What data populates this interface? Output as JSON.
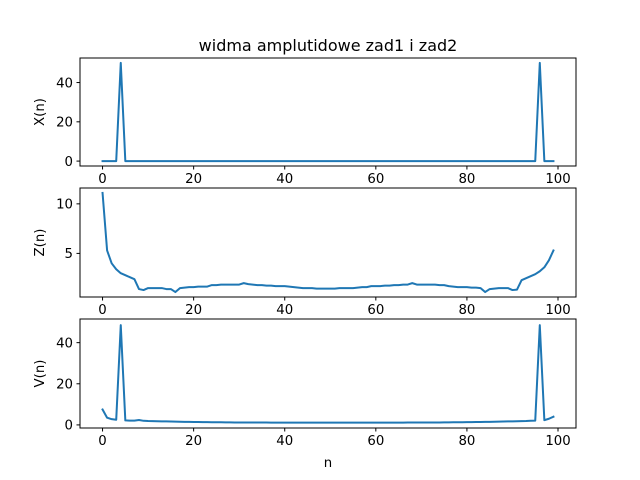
{
  "title": "widma amplutidowe zad1 i zad2",
  "line_color": "#1f77b4",
  "chart_data": [
    {
      "type": "line",
      "ylabel": "X(n)",
      "xlim": [
        -4.95,
        103.95
      ],
      "ylim": [
        -2.5,
        52.5
      ],
      "xticks": [
        0,
        20,
        40,
        60,
        80,
        100
      ],
      "yticks": [
        0,
        20,
        40
      ],
      "grid": false,
      "x": [
        0,
        1,
        2,
        3,
        4,
        5,
        6,
        7,
        8,
        9,
        10,
        11,
        12,
        13,
        14,
        15,
        16,
        17,
        18,
        19,
        20,
        21,
        22,
        23,
        24,
        25,
        26,
        27,
        28,
        29,
        30,
        31,
        32,
        33,
        34,
        35,
        36,
        37,
        38,
        39,
        40,
        41,
        42,
        43,
        44,
        45,
        46,
        47,
        48,
        49,
        50,
        51,
        52,
        53,
        54,
        55,
        56,
        57,
        58,
        59,
        60,
        61,
        62,
        63,
        64,
        65,
        66,
        67,
        68,
        69,
        70,
        71,
        72,
        73,
        74,
        75,
        76,
        77,
        78,
        79,
        80,
        81,
        82,
        83,
        84,
        85,
        86,
        87,
        88,
        89,
        90,
        91,
        92,
        93,
        94,
        95,
        96,
        97,
        98,
        99
      ],
      "values": [
        0,
        0,
        0,
        0,
        50,
        0,
        0,
        0,
        0,
        0,
        0,
        0,
        0,
        0,
        0,
        0,
        0,
        0,
        0,
        0,
        0,
        0,
        0,
        0,
        0,
        0,
        0,
        0,
        0,
        0,
        0,
        0,
        0,
        0,
        0,
        0,
        0,
        0,
        0,
        0,
        0,
        0,
        0,
        0,
        0,
        0,
        0,
        0,
        0,
        0,
        0,
        0,
        0,
        0,
        0,
        0,
        0,
        0,
        0,
        0,
        0,
        0,
        0,
        0,
        0,
        0,
        0,
        0,
        0,
        0,
        0,
        0,
        0,
        0,
        0,
        0,
        0,
        0,
        0,
        0,
        0,
        0,
        0,
        0,
        0,
        0,
        0,
        0,
        0,
        0,
        0,
        0,
        0,
        0,
        0,
        0,
        50,
        0,
        0,
        0
      ]
    },
    {
      "type": "line",
      "ylabel": "Z(n)",
      "xlim": [
        -4.95,
        103.95
      ],
      "ylim": [
        0.6,
        11.6
      ],
      "xticks": [
        0,
        20,
        40,
        60,
        80,
        100
      ],
      "yticks": [
        5,
        10
      ],
      "grid": false,
      "x": [
        0,
        1,
        2,
        3,
        4,
        5,
        6,
        7,
        8,
        9,
        10,
        11,
        12,
        13,
        14,
        15,
        16,
        17,
        18,
        19,
        20,
        21,
        22,
        23,
        24,
        25,
        26,
        27,
        28,
        29,
        30,
        31,
        32,
        33,
        34,
        35,
        36,
        37,
        38,
        39,
        40,
        41,
        42,
        43,
        44,
        45,
        46,
        47,
        48,
        49,
        50,
        51,
        52,
        53,
        54,
        55,
        56,
        57,
        58,
        59,
        60,
        61,
        62,
        63,
        64,
        65,
        66,
        67,
        68,
        69,
        70,
        71,
        72,
        73,
        74,
        75,
        76,
        77,
        78,
        79,
        80,
        81,
        82,
        83,
        84,
        85,
        86,
        87,
        88,
        89,
        90,
        91,
        92,
        93,
        94,
        95,
        96,
        97,
        98,
        99
      ],
      "values": [
        11.1,
        5.3,
        4.0,
        3.4,
        3.0,
        2.8,
        2.6,
        2.4,
        1.4,
        1.3,
        1.5,
        1.5,
        1.5,
        1.5,
        1.4,
        1.4,
        1.1,
        1.5,
        1.55,
        1.6,
        1.6,
        1.65,
        1.65,
        1.65,
        1.8,
        1.8,
        1.85,
        1.85,
        1.85,
        1.85,
        1.85,
        2.0,
        1.9,
        1.85,
        1.8,
        1.8,
        1.75,
        1.75,
        1.7,
        1.7,
        1.7,
        1.65,
        1.6,
        1.55,
        1.5,
        1.5,
        1.5,
        1.45,
        1.45,
        1.45,
        1.45,
        1.45,
        1.5,
        1.5,
        1.5,
        1.5,
        1.55,
        1.6,
        1.6,
        1.7,
        1.7,
        1.7,
        1.75,
        1.75,
        1.8,
        1.8,
        1.85,
        1.85,
        2.0,
        1.85,
        1.85,
        1.85,
        1.85,
        1.85,
        1.8,
        1.8,
        1.7,
        1.65,
        1.6,
        1.6,
        1.6,
        1.55,
        1.55,
        1.5,
        1.1,
        1.4,
        1.45,
        1.5,
        1.5,
        1.5,
        1.3,
        1.35,
        2.3,
        2.5,
        2.7,
        2.9,
        3.2,
        3.6,
        4.3,
        5.3
      ]
    },
    {
      "type": "line",
      "ylabel": "V(n)",
      "xlabel": "n",
      "xlim": [
        -4.95,
        103.95
      ],
      "ylim": [
        -1.5,
        51.5
      ],
      "xticks": [
        0,
        20,
        40,
        60,
        80,
        100
      ],
      "yticks": [
        0,
        20,
        40
      ],
      "grid": false,
      "x": [
        0,
        1,
        2,
        3,
        4,
        5,
        6,
        7,
        8,
        9,
        10,
        11,
        12,
        13,
        14,
        15,
        16,
        17,
        18,
        19,
        20,
        21,
        22,
        23,
        24,
        25,
        26,
        27,
        28,
        29,
        30,
        31,
        32,
        33,
        34,
        35,
        36,
        37,
        38,
        39,
        40,
        41,
        42,
        43,
        44,
        45,
        46,
        47,
        48,
        49,
        50,
        51,
        52,
        53,
        54,
        55,
        56,
        57,
        58,
        59,
        60,
        61,
        62,
        63,
        64,
        65,
        66,
        67,
        68,
        69,
        70,
        71,
        72,
        73,
        74,
        75,
        76,
        77,
        78,
        79,
        80,
        81,
        82,
        83,
        84,
        85,
        86,
        87,
        88,
        89,
        90,
        91,
        92,
        93,
        94,
        95,
        96,
        97,
        98,
        99
      ],
      "values": [
        7.5,
        3.5,
        2.8,
        2.5,
        48.5,
        2.2,
        2.1,
        2.1,
        2.4,
        2.0,
        1.9,
        1.85,
        1.8,
        1.75,
        1.7,
        1.65,
        1.6,
        1.55,
        1.5,
        1.45,
        1.4,
        1.4,
        1.35,
        1.35,
        1.3,
        1.3,
        1.3,
        1.25,
        1.25,
        1.2,
        1.2,
        1.2,
        1.2,
        1.15,
        1.15,
        1.15,
        1.15,
        1.1,
        1.1,
        1.1,
        1.1,
        1.1,
        1.1,
        1.1,
        1.1,
        1.1,
        1.1,
        1.1,
        1.1,
        1.1,
        1.1,
        1.1,
        1.1,
        1.1,
        1.1,
        1.1,
        1.1,
        1.1,
        1.1,
        1.1,
        1.1,
        1.1,
        1.1,
        1.1,
        1.1,
        1.1,
        1.1,
        1.15,
        1.15,
        1.15,
        1.15,
        1.2,
        1.2,
        1.2,
        1.2,
        1.25,
        1.25,
        1.3,
        1.3,
        1.3,
        1.35,
        1.35,
        1.4,
        1.4,
        1.45,
        1.5,
        1.55,
        1.6,
        1.65,
        1.7,
        1.75,
        1.8,
        1.85,
        1.9,
        2.0,
        2.1,
        48.5,
        2.3,
        3.0,
        4.0
      ]
    }
  ]
}
